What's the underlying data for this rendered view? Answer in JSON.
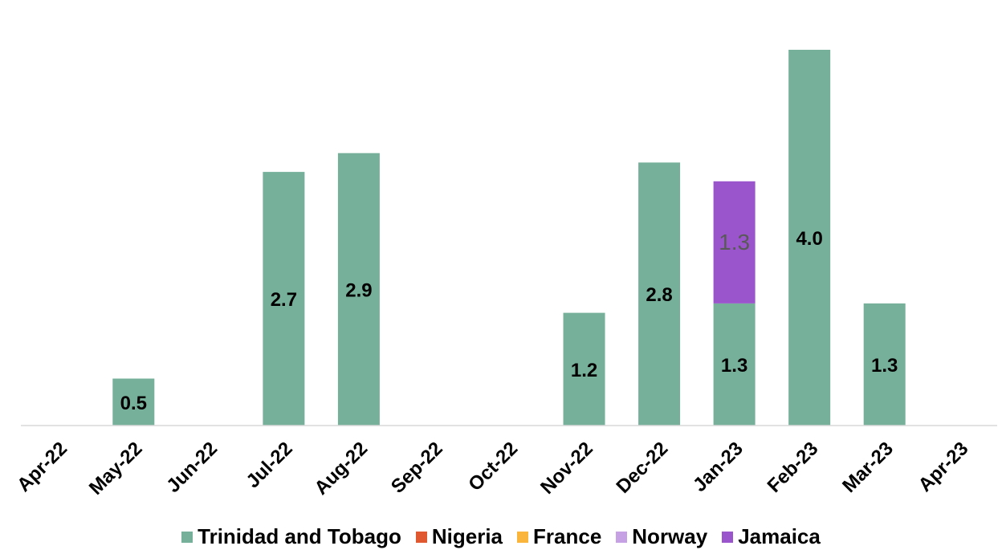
{
  "chart_data": {
    "type": "bar",
    "stacked": true,
    "categories": [
      "Apr-22",
      "May-22",
      "Jun-22",
      "Jul-22",
      "Aug-22",
      "Sep-22",
      "Oct-22",
      "Nov-22",
      "Dec-22",
      "Jan-23",
      "Feb-23",
      "Mar-23",
      "Apr-23"
    ],
    "series": [
      {
        "name": "Trinidad and Tobago",
        "color": "#76b09a",
        "values": [
          0,
          0.5,
          0,
          2.7,
          2.9,
          0,
          0,
          1.2,
          2.8,
          1.3,
          4.0,
          1.3,
          0
        ]
      },
      {
        "name": "Nigeria",
        "color": "#e0582f",
        "values": [
          0,
          0,
          0,
          0,
          0,
          0,
          0,
          0,
          0,
          0,
          0,
          0,
          0
        ]
      },
      {
        "name": "France",
        "color": "#f9b53c",
        "values": [
          0,
          0,
          0,
          0,
          0,
          0,
          0,
          0,
          0,
          0,
          0,
          0,
          0
        ]
      },
      {
        "name": "Norway",
        "color": "#c6a1e3",
        "values": [
          0,
          0,
          0,
          0,
          0,
          0,
          0,
          0,
          0,
          0,
          0,
          0,
          0
        ]
      },
      {
        "name": "Jamaica",
        "color": "#9b55cc",
        "values": [
          0,
          0,
          0,
          0,
          0,
          0,
          0,
          0,
          0,
          1.3,
          0,
          0,
          0
        ]
      }
    ],
    "data_labels": [
      {
        "category": "May-22",
        "series": "Trinidad and Tobago",
        "text": "0.5"
      },
      {
        "category": "Jul-22",
        "series": "Trinidad and Tobago",
        "text": "2.7"
      },
      {
        "category": "Aug-22",
        "series": "Trinidad and Tobago",
        "text": "2.9"
      },
      {
        "category": "Nov-22",
        "series": "Trinidad and Tobago",
        "text": "1.2"
      },
      {
        "category": "Dec-22",
        "series": "Trinidad and Tobago",
        "text": "2.8"
      },
      {
        "category": "Jan-23",
        "series": "Trinidad and Tobago",
        "text": "1.3"
      },
      {
        "category": "Jan-23",
        "series": "Jamaica",
        "text": "1.3"
      },
      {
        "category": "Feb-23",
        "series": "Trinidad and Tobago",
        "text": "4.0"
      },
      {
        "category": "Mar-23",
        "series": "Trinidad and Tobago",
        "text": "1.3"
      }
    ],
    "title": "",
    "xlabel": "",
    "ylabel": "",
    "ylim": [
      0,
      4.2
    ],
    "grid": false,
    "legend_position": "bottom"
  }
}
